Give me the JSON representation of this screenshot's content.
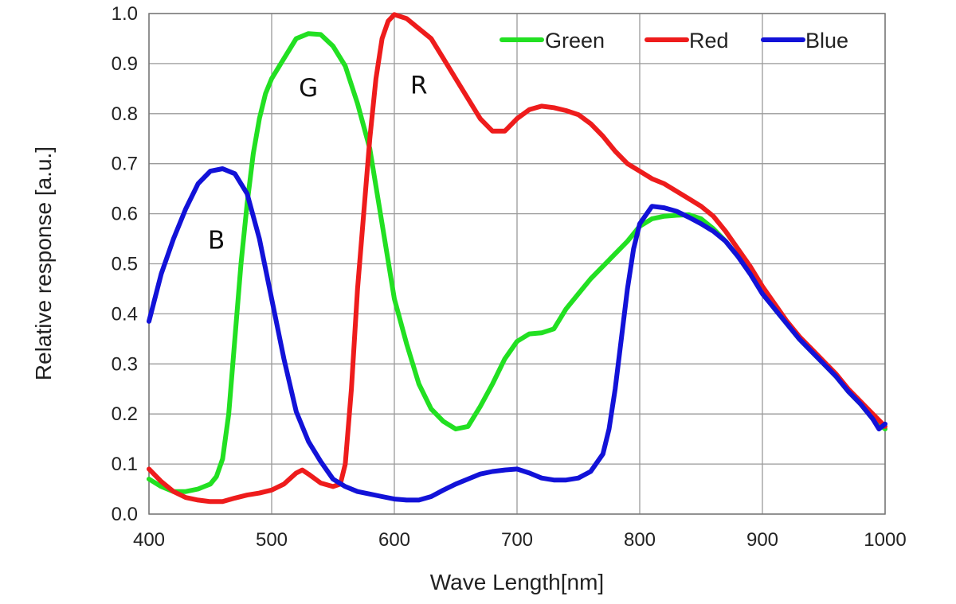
{
  "chart_data": {
    "type": "line",
    "title": "",
    "xlabel": "Wave Length[nm]",
    "ylabel": "Relative response [a.u.]",
    "xlim": [
      400,
      1000
    ],
    "ylim": [
      0,
      1.0
    ],
    "xticks": [
      400,
      500,
      600,
      700,
      800,
      900,
      1000
    ],
    "yticks": [
      0.0,
      0.1,
      0.2,
      0.3,
      0.4,
      0.5,
      0.6,
      0.7,
      0.8,
      0.9,
      1.0
    ],
    "ytick_labels": [
      "0.0",
      "0.1",
      "0.2",
      "0.3",
      "0.4",
      "0.5",
      "0.6",
      "0.7",
      "0.8",
      "0.9",
      "1.0"
    ],
    "grid": true,
    "legend_position": "top-right",
    "series": [
      {
        "name": "Green",
        "color": "#22e022",
        "x": [
          400,
          410,
          420,
          430,
          440,
          450,
          455,
          460,
          465,
          470,
          475,
          480,
          485,
          490,
          495,
          500,
          510,
          520,
          530,
          540,
          550,
          560,
          570,
          580,
          590,
          600,
          610,
          620,
          630,
          640,
          650,
          660,
          670,
          680,
          690,
          700,
          710,
          720,
          730,
          740,
          750,
          760,
          770,
          780,
          790,
          800,
          810,
          820,
          830,
          840,
          850,
          860,
          870,
          880,
          890,
          900,
          910,
          920,
          930,
          940,
          950,
          960,
          970,
          980,
          990,
          1000
        ],
        "values": [
          0.07,
          0.055,
          0.045,
          0.045,
          0.05,
          0.06,
          0.075,
          0.11,
          0.2,
          0.35,
          0.5,
          0.62,
          0.72,
          0.79,
          0.84,
          0.87,
          0.91,
          0.95,
          0.96,
          0.958,
          0.935,
          0.895,
          0.82,
          0.73,
          0.58,
          0.43,
          0.34,
          0.26,
          0.21,
          0.185,
          0.17,
          0.175,
          0.215,
          0.26,
          0.31,
          0.345,
          0.36,
          0.362,
          0.37,
          0.41,
          0.44,
          0.47,
          0.495,
          0.52,
          0.545,
          0.575,
          0.59,
          0.595,
          0.597,
          0.598,
          0.59,
          0.57,
          0.545,
          0.515,
          0.485,
          0.445,
          0.41,
          0.38,
          0.35,
          0.325,
          0.3,
          0.275,
          0.245,
          0.22,
          0.19,
          0.17
        ]
      },
      {
        "name": "Red",
        "color": "#ee1c1c",
        "x": [
          400,
          410,
          420,
          430,
          440,
          450,
          460,
          470,
          480,
          490,
          500,
          510,
          520,
          525,
          530,
          540,
          550,
          556,
          560,
          565,
          570,
          575,
          580,
          585,
          590,
          595,
          600,
          610,
          620,
          630,
          640,
          650,
          660,
          670,
          680,
          690,
          700,
          710,
          720,
          730,
          740,
          750,
          760,
          770,
          780,
          790,
          800,
          810,
          820,
          830,
          840,
          850,
          860,
          870,
          880,
          890,
          900,
          910,
          920,
          930,
          940,
          950,
          960,
          970,
          980,
          990,
          1000
        ],
        "values": [
          0.09,
          0.065,
          0.045,
          0.033,
          0.028,
          0.025,
          0.025,
          0.032,
          0.038,
          0.042,
          0.048,
          0.06,
          0.082,
          0.088,
          0.08,
          0.062,
          0.055,
          0.06,
          0.1,
          0.25,
          0.45,
          0.6,
          0.75,
          0.87,
          0.95,
          0.985,
          0.998,
          0.99,
          0.97,
          0.95,
          0.91,
          0.87,
          0.83,
          0.79,
          0.765,
          0.765,
          0.79,
          0.808,
          0.815,
          0.812,
          0.806,
          0.798,
          0.78,
          0.755,
          0.725,
          0.7,
          0.685,
          0.67,
          0.66,
          0.645,
          0.63,
          0.615,
          0.595,
          0.565,
          0.53,
          0.495,
          0.455,
          0.42,
          0.385,
          0.355,
          0.33,
          0.305,
          0.28,
          0.25,
          0.225,
          0.2,
          0.175
        ]
      },
      {
        "name": "Blue",
        "color": "#1212d8",
        "x": [
          400,
          410,
          420,
          430,
          440,
          450,
          460,
          470,
          480,
          490,
          500,
          510,
          520,
          530,
          540,
          550,
          560,
          570,
          580,
          590,
          600,
          610,
          620,
          630,
          640,
          650,
          660,
          670,
          680,
          690,
          700,
          710,
          720,
          730,
          740,
          750,
          760,
          770,
          775,
          780,
          785,
          790,
          795,
          800,
          810,
          820,
          830,
          840,
          850,
          860,
          870,
          880,
          890,
          900,
          910,
          920,
          930,
          940,
          950,
          960,
          970,
          980,
          990,
          995,
          1000
        ],
        "values": [
          0.385,
          0.48,
          0.55,
          0.61,
          0.66,
          0.685,
          0.69,
          0.68,
          0.64,
          0.55,
          0.43,
          0.31,
          0.205,
          0.145,
          0.105,
          0.07,
          0.055,
          0.045,
          0.04,
          0.035,
          0.03,
          0.028,
          0.028,
          0.035,
          0.048,
          0.06,
          0.07,
          0.08,
          0.085,
          0.088,
          0.09,
          0.082,
          0.072,
          0.068,
          0.068,
          0.072,
          0.085,
          0.12,
          0.17,
          0.25,
          0.35,
          0.45,
          0.53,
          0.58,
          0.615,
          0.612,
          0.605,
          0.593,
          0.58,
          0.565,
          0.545,
          0.515,
          0.48,
          0.44,
          0.41,
          0.38,
          0.35,
          0.325,
          0.3,
          0.275,
          0.245,
          0.22,
          0.19,
          0.17,
          0.18
        ]
      }
    ],
    "annotations": [
      {
        "text": "B",
        "x": 455,
        "y": 0.53
      },
      {
        "text": "G",
        "x": 530,
        "y": 0.835
      },
      {
        "text": "R",
        "x": 620,
        "y": 0.84
      }
    ]
  }
}
